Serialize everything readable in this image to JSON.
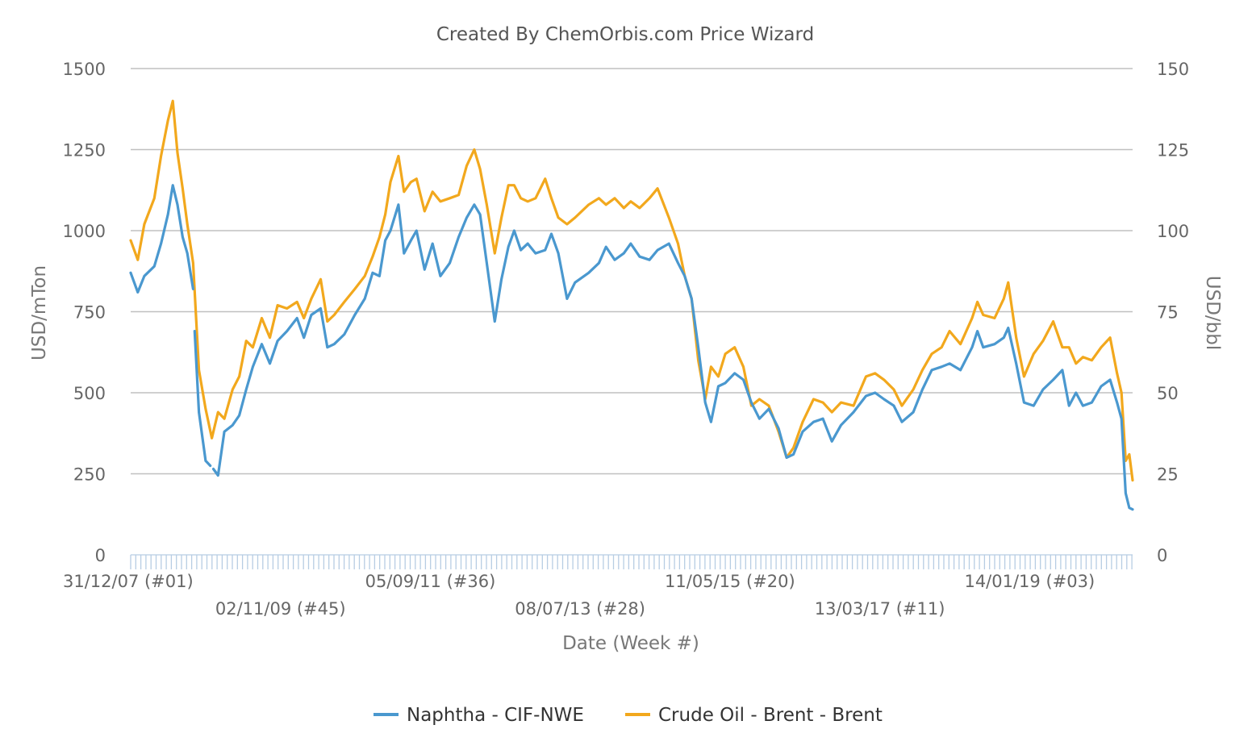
{
  "chart_data": {
    "type": "line",
    "title": "Created By ChemOrbis.com Price Wizard",
    "xlabel": "Date (Week #)",
    "ylabel_left": "USD/mTon",
    "ylabel_right": "USD/bbl",
    "ylim_left": [
      0,
      1500
    ],
    "ylim_right": [
      0,
      150
    ],
    "yticks_left": [
      "0",
      "250",
      "500",
      "750",
      "1000",
      "1250",
      "1500"
    ],
    "yticks_right": [
      "0",
      "25",
      "50",
      "75",
      "100",
      "125",
      "150"
    ],
    "grid": true,
    "legend_position": "bottom",
    "x_range": [
      "2007-12-31",
      "2020-04-20"
    ],
    "x_ticks": [
      {
        "date": "2007-12-31",
        "label": "31/12/07 (#01)"
      },
      {
        "date": "2009-11-02",
        "label": "02/11/09 (#45)"
      },
      {
        "date": "2011-09-05",
        "label": "05/09/11 (#36)"
      },
      {
        "date": "2013-07-08",
        "label": "08/07/13 (#28)"
      },
      {
        "date": "2015-05-11",
        "label": "11/05/15 (#20)"
      },
      {
        "date": "2017-03-13",
        "label": "13/03/17 (#11)"
      },
      {
        "date": "2019-01-14",
        "label": "14/01/19 (#03)"
      }
    ],
    "series": [
      {
        "name": "Naphtha - CIF-NWE",
        "axis": "left",
        "color": "#4a98cf",
        "points": [
          [
            "2007-12-31",
            870
          ],
          [
            "2008-02-01",
            810
          ],
          [
            "2008-03-01",
            860
          ],
          [
            "2008-04-15",
            890
          ],
          [
            "2008-05-15",
            960
          ],
          [
            "2008-06-15",
            1050
          ],
          [
            "2008-07-07",
            1140
          ],
          [
            "2008-07-28",
            1080
          ],
          [
            "2008-08-20",
            980
          ],
          [
            "2008-09-10",
            930
          ],
          [
            "2008-10-06",
            820
          ],
          [
            "2008-10-07",
            null
          ],
          [
            "2008-10-13",
            690
          ],
          [
            "2008-11-01",
            440
          ],
          [
            "2008-12-01",
            290
          ],
          [
            "2008-12-22",
            275
          ],
          [
            "2008-12-29",
            null
          ],
          [
            "2009-01-05",
            265
          ],
          [
            "2009-01-26",
            245
          ],
          [
            "2009-02-23",
            380
          ],
          [
            "2009-04-01",
            400
          ],
          [
            "2009-05-01",
            430
          ],
          [
            "2009-06-01",
            510
          ],
          [
            "2009-07-01",
            580
          ],
          [
            "2009-08-10",
            650
          ],
          [
            "2009-09-15",
            590
          ],
          [
            "2009-10-20",
            660
          ],
          [
            "2009-12-01",
            690
          ],
          [
            "2010-01-15",
            730
          ],
          [
            "2010-02-15",
            670
          ],
          [
            "2010-03-20",
            740
          ],
          [
            "2010-05-01",
            760
          ],
          [
            "2010-05-31",
            640
          ],
          [
            "2010-07-01",
            650
          ],
          [
            "2010-08-15",
            680
          ],
          [
            "2010-10-01",
            740
          ],
          [
            "2010-11-15",
            790
          ],
          [
            "2010-12-20",
            870
          ],
          [
            "2011-01-20",
            860
          ],
          [
            "2011-02-15",
            970
          ],
          [
            "2011-03-10",
            1000
          ],
          [
            "2011-04-15",
            1080
          ],
          [
            "2011-05-10",
            930
          ],
          [
            "2011-06-10",
            970
          ],
          [
            "2011-07-05",
            1000
          ],
          [
            "2011-08-10",
            880
          ],
          [
            "2011-09-15",
            960
          ],
          [
            "2011-10-20",
            860
          ],
          [
            "2011-12-01",
            900
          ],
          [
            "2012-01-10",
            980
          ],
          [
            "2012-02-15",
            1040
          ],
          [
            "2012-03-20",
            1080
          ],
          [
            "2012-04-15",
            1050
          ],
          [
            "2012-05-15",
            900
          ],
          [
            "2012-06-20",
            720
          ],
          [
            "2012-07-20",
            850
          ],
          [
            "2012-08-20",
            950
          ],
          [
            "2012-09-15",
            1000
          ],
          [
            "2012-10-15",
            940
          ],
          [
            "2012-11-15",
            960
          ],
          [
            "2012-12-20",
            930
          ],
          [
            "2013-02-01",
            940
          ],
          [
            "2013-03-01",
            990
          ],
          [
            "2013-04-01",
            930
          ],
          [
            "2013-05-10",
            790
          ],
          [
            "2013-06-15",
            840
          ],
          [
            "2013-08-15",
            870
          ],
          [
            "2013-09-30",
            900
          ],
          [
            "2013-11-01",
            950
          ],
          [
            "2013-12-10",
            910
          ],
          [
            "2014-01-20",
            930
          ],
          [
            "2014-02-20",
            960
          ],
          [
            "2014-04-01",
            920
          ],
          [
            "2014-05-15",
            910
          ],
          [
            "2014-06-20",
            940
          ],
          [
            "2014-08-10",
            960
          ],
          [
            "2014-09-20",
            900
          ],
          [
            "2014-10-20",
            860
          ],
          [
            "2014-11-20",
            790
          ],
          [
            "2014-12-20",
            640
          ],
          [
            "2015-01-20",
            470
          ],
          [
            "2015-02-15",
            410
          ],
          [
            "2015-03-20",
            520
          ],
          [
            "2015-04-20",
            530
          ],
          [
            "2015-06-01",
            560
          ],
          [
            "2015-07-10",
            540
          ],
          [
            "2015-08-15",
            470
          ],
          [
            "2015-09-20",
            420
          ],
          [
            "2015-11-01",
            450
          ],
          [
            "2015-12-15",
            390
          ],
          [
            "2016-01-20",
            300
          ],
          [
            "2016-02-20",
            310
          ],
          [
            "2016-04-01",
            380
          ],
          [
            "2016-05-20",
            410
          ],
          [
            "2016-07-01",
            420
          ],
          [
            "2016-08-10",
            350
          ],
          [
            "2016-09-20",
            400
          ],
          [
            "2016-11-15",
            440
          ],
          [
            "2017-01-10",
            490
          ],
          [
            "2017-02-20",
            500
          ],
          [
            "2017-04-01",
            480
          ],
          [
            "2017-05-15",
            460
          ],
          [
            "2017-06-20",
            410
          ],
          [
            "2017-08-10",
            440
          ],
          [
            "2017-09-20",
            510
          ],
          [
            "2017-11-01",
            570
          ],
          [
            "2017-12-15",
            580
          ],
          [
            "2018-01-20",
            590
          ],
          [
            "2018-03-10",
            570
          ],
          [
            "2018-05-01",
            640
          ],
          [
            "2018-05-25",
            690
          ],
          [
            "2018-06-20",
            640
          ],
          [
            "2018-08-10",
            650
          ],
          [
            "2018-09-20",
            670
          ],
          [
            "2018-10-10",
            700
          ],
          [
            "2018-11-15",
            590
          ],
          [
            "2018-12-20",
            470
          ],
          [
            "2019-02-01",
            460
          ],
          [
            "2019-03-15",
            510
          ],
          [
            "2019-04-30",
            540
          ],
          [
            "2019-06-10",
            570
          ],
          [
            "2019-07-10",
            460
          ],
          [
            "2019-08-10",
            500
          ],
          [
            "2019-09-10",
            460
          ],
          [
            "2019-10-20",
            470
          ],
          [
            "2019-12-01",
            520
          ],
          [
            "2020-01-10",
            540
          ],
          [
            "2020-02-10",
            470
          ],
          [
            "2020-03-01",
            420
          ],
          [
            "2020-03-20",
            190
          ],
          [
            "2020-04-05",
            145
          ],
          [
            "2020-04-20",
            140
          ]
        ]
      },
      {
        "name": "Crude Oil - Brent - Brent",
        "axis": "right",
        "color": "#f2a81d",
        "points": [
          [
            "2007-12-31",
            97
          ],
          [
            "2008-02-01",
            91
          ],
          [
            "2008-03-01",
            102
          ],
          [
            "2008-04-15",
            110
          ],
          [
            "2008-05-15",
            123
          ],
          [
            "2008-06-15",
            134
          ],
          [
            "2008-07-07",
            140
          ],
          [
            "2008-07-28",
            124
          ],
          [
            "2008-08-20",
            113
          ],
          [
            "2008-09-10",
            102
          ],
          [
            "2008-10-06",
            90
          ],
          [
            "2008-11-01",
            57
          ],
          [
            "2008-12-01",
            45
          ],
          [
            "2008-12-29",
            36
          ],
          [
            "2009-01-26",
            44
          ],
          [
            "2009-02-23",
            42
          ],
          [
            "2009-04-01",
            51
          ],
          [
            "2009-05-01",
            55
          ],
          [
            "2009-06-01",
            66
          ],
          [
            "2009-07-01",
            64
          ],
          [
            "2009-08-10",
            73
          ],
          [
            "2009-09-15",
            67
          ],
          [
            "2009-10-20",
            77
          ],
          [
            "2009-12-01",
            76
          ],
          [
            "2010-01-15",
            78
          ],
          [
            "2010-02-15",
            73
          ],
          [
            "2010-03-20",
            79
          ],
          [
            "2010-05-01",
            85
          ],
          [
            "2010-05-31",
            72
          ],
          [
            "2010-07-01",
            74
          ],
          [
            "2010-08-15",
            78
          ],
          [
            "2010-10-01",
            82
          ],
          [
            "2010-11-15",
            86
          ],
          [
            "2010-12-20",
            92
          ],
          [
            "2011-01-20",
            98
          ],
          [
            "2011-02-15",
            105
          ],
          [
            "2011-03-10",
            115
          ],
          [
            "2011-04-15",
            123
          ],
          [
            "2011-05-10",
            112
          ],
          [
            "2011-06-10",
            115
          ],
          [
            "2011-07-05",
            116
          ],
          [
            "2011-08-10",
            106
          ],
          [
            "2011-09-15",
            112
          ],
          [
            "2011-10-20",
            109
          ],
          [
            "2011-12-01",
            110
          ],
          [
            "2012-01-10",
            111
          ],
          [
            "2012-02-15",
            120
          ],
          [
            "2012-03-20",
            125
          ],
          [
            "2012-04-15",
            119
          ],
          [
            "2012-05-15",
            108
          ],
          [
            "2012-06-20",
            93
          ],
          [
            "2012-07-20",
            104
          ],
          [
            "2012-08-20",
            114
          ],
          [
            "2012-09-15",
            114
          ],
          [
            "2012-10-15",
            110
          ],
          [
            "2012-11-15",
            109
          ],
          [
            "2012-12-20",
            110
          ],
          [
            "2013-02-01",
            116
          ],
          [
            "2013-03-01",
            110
          ],
          [
            "2013-04-01",
            104
          ],
          [
            "2013-05-10",
            102
          ],
          [
            "2013-06-15",
            104
          ],
          [
            "2013-08-15",
            108
          ],
          [
            "2013-09-30",
            110
          ],
          [
            "2013-11-01",
            108
          ],
          [
            "2013-12-10",
            110
          ],
          [
            "2014-01-20",
            107
          ],
          [
            "2014-02-20",
            109
          ],
          [
            "2014-04-01",
            107
          ],
          [
            "2014-05-15",
            110
          ],
          [
            "2014-06-20",
            113
          ],
          [
            "2014-08-10",
            104
          ],
          [
            "2014-09-20",
            96
          ],
          [
            "2014-10-20",
            86
          ],
          [
            "2014-11-20",
            79
          ],
          [
            "2014-12-20",
            60
          ],
          [
            "2015-01-20",
            48
          ],
          [
            "2015-02-15",
            58
          ],
          [
            "2015-03-20",
            55
          ],
          [
            "2015-04-20",
            62
          ],
          [
            "2015-06-01",
            64
          ],
          [
            "2015-07-10",
            58
          ],
          [
            "2015-08-15",
            46
          ],
          [
            "2015-09-20",
            48
          ],
          [
            "2015-11-01",
            46
          ],
          [
            "2015-12-15",
            38
          ],
          [
            "2016-01-20",
            30
          ],
          [
            "2016-02-20",
            33
          ],
          [
            "2016-04-01",
            41
          ],
          [
            "2016-05-20",
            48
          ],
          [
            "2016-07-01",
            47
          ],
          [
            "2016-08-10",
            44
          ],
          [
            "2016-09-20",
            47
          ],
          [
            "2016-11-15",
            46
          ],
          [
            "2017-01-10",
            55
          ],
          [
            "2017-02-20",
            56
          ],
          [
            "2017-04-01",
            54
          ],
          [
            "2017-05-15",
            51
          ],
          [
            "2017-06-20",
            46
          ],
          [
            "2017-08-10",
            51
          ],
          [
            "2017-09-20",
            57
          ],
          [
            "2017-11-01",
            62
          ],
          [
            "2017-12-15",
            64
          ],
          [
            "2018-01-20",
            69
          ],
          [
            "2018-03-10",
            65
          ],
          [
            "2018-05-01",
            73
          ],
          [
            "2018-05-25",
            78
          ],
          [
            "2018-06-20",
            74
          ],
          [
            "2018-08-10",
            73
          ],
          [
            "2018-09-20",
            79
          ],
          [
            "2018-10-10",
            84
          ],
          [
            "2018-11-15",
            67
          ],
          [
            "2018-12-20",
            55
          ],
          [
            "2019-02-01",
            62
          ],
          [
            "2019-03-15",
            66
          ],
          [
            "2019-04-30",
            72
          ],
          [
            "2019-06-10",
            64
          ],
          [
            "2019-07-10",
            64
          ],
          [
            "2019-08-10",
            59
          ],
          [
            "2019-09-10",
            61
          ],
          [
            "2019-10-20",
            60
          ],
          [
            "2019-12-01",
            64
          ],
          [
            "2020-01-10",
            67
          ],
          [
            "2020-02-10",
            56
          ],
          [
            "2020-03-01",
            50
          ],
          [
            "2020-03-20",
            29
          ],
          [
            "2020-04-05",
            31
          ],
          [
            "2020-04-20",
            23
          ]
        ]
      }
    ]
  }
}
